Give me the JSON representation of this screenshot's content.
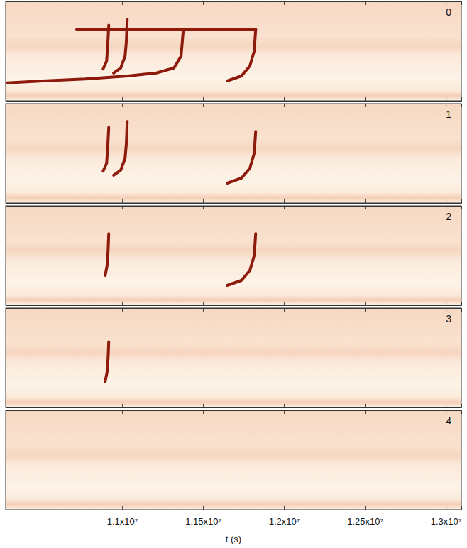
{
  "chart_data": {
    "type": "line",
    "xlabel": "t (s)",
    "tick_labels": "x",
    "xlim": [
      10280000,
      13096000
    ],
    "xticks": [
      {
        "value": 11000000,
        "label": "1.1x10⁷"
      },
      {
        "value": 11500000,
        "label": "1.15x10⁷"
      },
      {
        "value": 12000000,
        "label": "1.2x10⁷"
      },
      {
        "value": 12500000,
        "label": "1.25x10⁷"
      },
      {
        "value": 13000000,
        "label": "1.3x10⁷"
      }
    ],
    "ylim": [
      0,
      1
    ],
    "yticks": [],
    "panels": [
      {
        "title": "0",
        "series": [
          {
            "color": "#8e1a0c",
            "x": [
              10719000,
              11000000,
              11300000,
              11600000,
              11825000
            ],
            "values": [
              0.72,
              0.72,
              0.72,
              0.72,
              0.72
            ]
          },
          {
            "color": "#8e1a0c",
            "x": [
              10289000,
              10509000,
              10772000,
              11035000,
              11211000,
              11320000,
              11364000,
              11377000
            ],
            "values": [
              0.18,
              0.2,
              0.22,
              0.25,
              0.28,
              0.33,
              0.45,
              0.7
            ]
          },
          {
            "color": "#8e1a0c",
            "x": [
              10882000,
              10904000,
              10912000,
              10917000
            ],
            "values": [
              0.32,
              0.4,
              0.6,
              0.76
            ]
          },
          {
            "color": "#8e1a0c",
            "x": [
              10947000,
              10991000,
              11018000,
              11026000,
              11031000
            ],
            "values": [
              0.28,
              0.33,
              0.45,
              0.6,
              0.82
            ]
          },
          {
            "color": "#8e1a0c",
            "x": [
              11649000,
              11737000,
              11789000,
              11816000,
              11825000
            ],
            "values": [
              0.2,
              0.25,
              0.35,
              0.5,
              0.72
            ]
          }
        ]
      },
      {
        "title": "1",
        "series": [
          {
            "color": "#8e1a0c",
            "x": [
              10882000,
              10904000,
              10912000,
              10917000
            ],
            "values": [
              0.32,
              0.4,
              0.6,
              0.76
            ]
          },
          {
            "color": "#8e1a0c",
            "x": [
              10947000,
              10991000,
              11018000,
              11026000,
              11031000
            ],
            "values": [
              0.28,
              0.33,
              0.45,
              0.6,
              0.82
            ]
          },
          {
            "color": "#8e1a0c",
            "x": [
              11649000,
              11737000,
              11789000,
              11816000,
              11825000
            ],
            "values": [
              0.2,
              0.25,
              0.35,
              0.5,
              0.72
            ]
          }
        ]
      },
      {
        "title": "2",
        "series": [
          {
            "color": "#8e1a0c",
            "x": [
              10895000,
              10907000,
              10913000,
              10917000
            ],
            "values": [
              0.3,
              0.4,
              0.55,
              0.72
            ]
          },
          {
            "color": "#8e1a0c",
            "x": [
              11649000,
              11737000,
              11789000,
              11816000,
              11825000
            ],
            "values": [
              0.2,
              0.25,
              0.35,
              0.5,
              0.72
            ]
          }
        ]
      },
      {
        "title": "3",
        "series": [
          {
            "color": "#8e1a0c",
            "x": [
              10895000,
              10907000,
              10913000,
              10917000
            ],
            "values": [
              0.26,
              0.36,
              0.5,
              0.66
            ]
          }
        ]
      },
      {
        "title": "4",
        "series": []
      }
    ]
  }
}
